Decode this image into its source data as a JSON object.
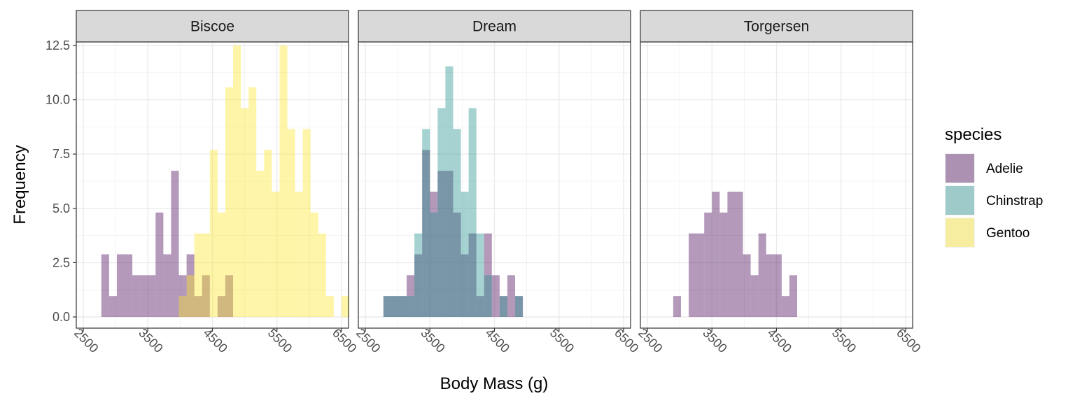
{
  "chart_data": {
    "type": "bar",
    "subtype": "faceted-histogram",
    "facet_variable": "island",
    "facets": [
      "Biscoe",
      "Dream",
      "Torgersen"
    ],
    "xlabel": "Body Mass (g)",
    "ylabel": "Frequency",
    "xlim": [
      2500,
      6500
    ],
    "ylim": [
      0,
      13
    ],
    "x_ticks": [
      2500,
      3500,
      4500,
      5500,
      6500
    ],
    "y_ticks": [
      0,
      2.5,
      5,
      7.5,
      10,
      12.5
    ],
    "y_tick_labels": [
      "0.0",
      "2.5",
      "5.0",
      "7.5",
      "10.0",
      "12.5"
    ],
    "x_tick_labels": [
      "2500",
      "3500",
      "4500",
      "5500",
      "6500"
    ],
    "tick_label_rotation": -45,
    "grid": true,
    "legend": {
      "title": "species",
      "position": "right",
      "items": [
        {
          "name": "Adelie",
          "color": "#440154"
        },
        {
          "name": "Chinstrap",
          "color": "#21908C"
        },
        {
          "name": "Gentoo",
          "color": "#FDE725"
        }
      ]
    },
    "bar_alpha": 0.4,
    "bin_width": 120,
    "bin_start": 2780,
    "panels": [
      {
        "facet": "Biscoe",
        "series": [
          {
            "name": "Adelie",
            "bins": [
              [
                2780,
                3
              ],
              [
                2900,
                1
              ],
              [
                3020,
                3
              ],
              [
                3140,
                3
              ],
              [
                3260,
                2
              ],
              [
                3380,
                2
              ],
              [
                3500,
                2
              ],
              [
                3620,
                5
              ],
              [
                3740,
                3
              ],
              [
                3860,
                7
              ],
              [
                3980,
                2
              ],
              [
                4100,
                3
              ],
              [
                4220,
                1
              ],
              [
                4340,
                2
              ],
              [
                4580,
                1
              ],
              [
                4700,
                2
              ]
            ]
          },
          {
            "name": "Gentoo",
            "bins": [
              [
                3980,
                1
              ],
              [
                4100,
                2
              ],
              [
                4220,
                4
              ],
              [
                4340,
                4
              ],
              [
                4460,
                8
              ],
              [
                4580,
                5
              ],
              [
                4700,
                11
              ],
              [
                4820,
                13
              ],
              [
                4940,
                10
              ],
              [
                5060,
                11
              ],
              [
                5180,
                7
              ],
              [
                5300,
                8
              ],
              [
                5420,
                6
              ],
              [
                5540,
                13
              ],
              [
                5660,
                9
              ],
              [
                5780,
                6
              ],
              [
                5900,
                9
              ],
              [
                6020,
                5
              ],
              [
                6140,
                4
              ],
              [
                6260,
                1
              ],
              [
                6500,
                1
              ]
            ]
          }
        ]
      },
      {
        "facet": "Dream",
        "series": [
          {
            "name": "Adelie",
            "bins": [
              [
                2780,
                1
              ],
              [
                2900,
                1
              ],
              [
                3020,
                1
              ],
              [
                3140,
                2
              ],
              [
                3260,
                3
              ],
              [
                3380,
                8
              ],
              [
                3500,
                6
              ],
              [
                3620,
                7
              ],
              [
                3740,
                7
              ],
              [
                3860,
                5
              ],
              [
                3980,
                3
              ],
              [
                4100,
                4
              ],
              [
                4220,
                1
              ],
              [
                4340,
                4
              ],
              [
                4460,
                2
              ],
              [
                4580,
                1
              ],
              [
                4700,
                2
              ],
              [
                4820,
                1
              ]
            ]
          },
          {
            "name": "Chinstrap",
            "bins": [
              [
                2780,
                1
              ],
              [
                2900,
                1
              ],
              [
                3020,
                1
              ],
              [
                3140,
                1
              ],
              [
                3260,
                4
              ],
              [
                3380,
                9
              ],
              [
                3500,
                5
              ],
              [
                3620,
                10
              ],
              [
                3740,
                12
              ],
              [
                3860,
                9
              ],
              [
                3980,
                6
              ],
              [
                4100,
                10
              ],
              [
                4220,
                4
              ],
              [
                4340,
                2
              ],
              [
                4580,
                1
              ],
              [
                4820,
                1
              ]
            ]
          }
        ]
      },
      {
        "facet": "Torgersen",
        "series": [
          {
            "name": "Adelie",
            "bins": [
              [
                2900,
                1
              ],
              [
                3140,
                4
              ],
              [
                3260,
                4
              ],
              [
                3380,
                5
              ],
              [
                3500,
                6
              ],
              [
                3620,
                5
              ],
              [
                3740,
                6
              ],
              [
                3860,
                6
              ],
              [
                3980,
                3
              ],
              [
                4100,
                2
              ],
              [
                4220,
                4
              ],
              [
                4340,
                3
              ],
              [
                4460,
                3
              ],
              [
                4580,
                1
              ],
              [
                4700,
                2
              ]
            ]
          }
        ]
      }
    ]
  }
}
